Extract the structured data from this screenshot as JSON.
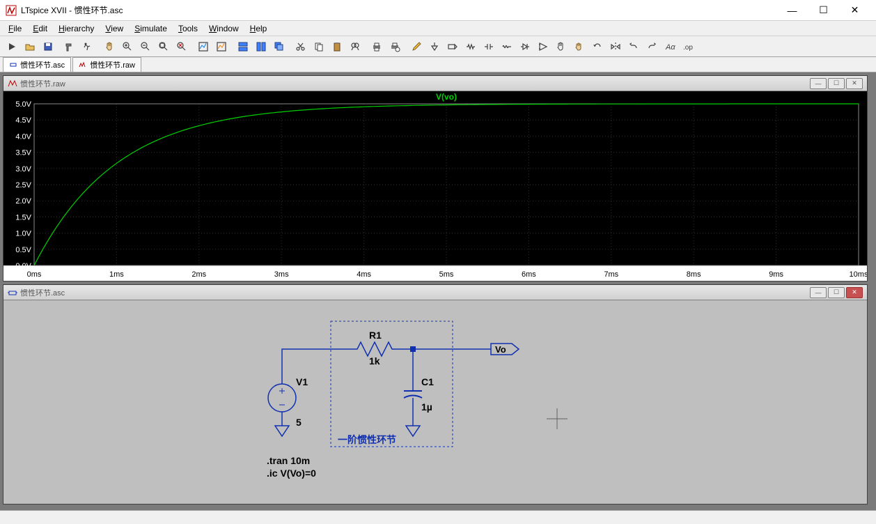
{
  "window": {
    "title": "LTspice XVII - 惯性环节.asc",
    "controls": {
      "min": "—",
      "max": "☐",
      "close": "✕"
    }
  },
  "menu": {
    "items": [
      {
        "u": "F",
        "rest": "ile"
      },
      {
        "u": "E",
        "rest": "dit"
      },
      {
        "u": "H",
        "pre": "",
        "rest": "ierarchy"
      },
      {
        "u": "V",
        "rest": "iew"
      },
      {
        "u": "S",
        "rest": "imulate"
      },
      {
        "u": "T",
        "rest": "ools"
      },
      {
        "u": "W",
        "rest": "indow"
      },
      {
        "u": "H",
        "rest": "elp"
      }
    ]
  },
  "toolbar_icons": [
    "run",
    "open",
    "save",
    "sep",
    "hammer",
    "runner",
    "sep",
    "hand",
    "zoom-in",
    "zoom-out",
    "zoom-fit",
    "zoom-x",
    "sep",
    "plot1",
    "plot2",
    "sep",
    "tile-h",
    "tile-v",
    "cascade",
    "sep",
    "cut",
    "copy",
    "paste",
    "find",
    "sep",
    "print",
    "printsetup",
    "sep",
    "pencil",
    "gnd",
    "label",
    "res",
    "cap",
    "ind",
    "diode",
    "comp",
    "move",
    "grab",
    "rotate",
    "mirror",
    "undo",
    "redo",
    "text-aa",
    "op"
  ],
  "tabs": {
    "items": [
      {
        "icon": "asc",
        "label": "惯性环节.asc",
        "active": true
      },
      {
        "icon": "raw",
        "label": "惯性环节.raw",
        "active": false
      }
    ]
  },
  "plot_win": {
    "title": "惯性环节.raw",
    "trace_label": "V(vo)",
    "trace_color": "#00d000",
    "bg": "#000000",
    "axis_color": "#ffffff",
    "grid_color": "#303030",
    "y": {
      "min": 0.0,
      "max": 5.0,
      "step": 0.5,
      "unit": "V",
      "labels": [
        "0.0V",
        "0.5V",
        "1.0V",
        "1.5V",
        "2.0V",
        "2.5V",
        "3.0V",
        "3.5V",
        "4.0V",
        "4.5V",
        "5.0V"
      ]
    },
    "x": {
      "min": 0,
      "max": 10,
      "step": 1,
      "unit": "ms",
      "labels": [
        "0ms",
        "1ms",
        "2ms",
        "3ms",
        "4ms",
        "5ms",
        "6ms",
        "7ms",
        "8ms",
        "9ms",
        "10ms"
      ]
    },
    "tau_ms": 1.0,
    "final_v": 5.0
  },
  "schem_win": {
    "title": "惯性环节.asc",
    "wire_color": "#1030b0",
    "text_color": "#1030b0",
    "bg": "#bfbfbf",
    "components": {
      "V1": {
        "name": "V1",
        "value": "5"
      },
      "R1": {
        "name": "R1",
        "value": "1k"
      },
      "C1": {
        "name": "C1",
        "value": "1µ"
      },
      "out_label": "Vo",
      "block_label": "一阶惯性环节"
    },
    "directives": [
      ".tran 10m",
      ".ic V(Vo)=0"
    ]
  }
}
